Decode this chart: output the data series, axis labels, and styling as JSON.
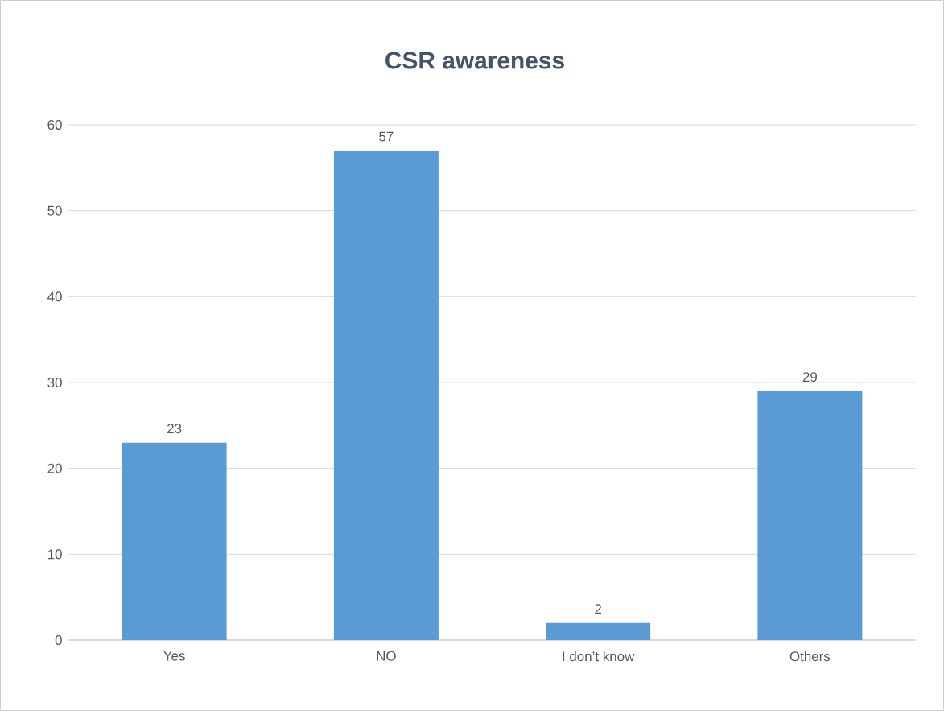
{
  "chart_data": {
    "type": "bar",
    "title": "CSR awareness",
    "categories": [
      "Yes",
      "NO",
      "I don’t know",
      "Others"
    ],
    "values": [
      23,
      57,
      2,
      29
    ],
    "color": "#5b9bd5",
    "ylim": [
      0,
      60
    ],
    "yticks": [
      0,
      10,
      20,
      30,
      40,
      50,
      60
    ],
    "grid": "y",
    "data_labels": true
  }
}
